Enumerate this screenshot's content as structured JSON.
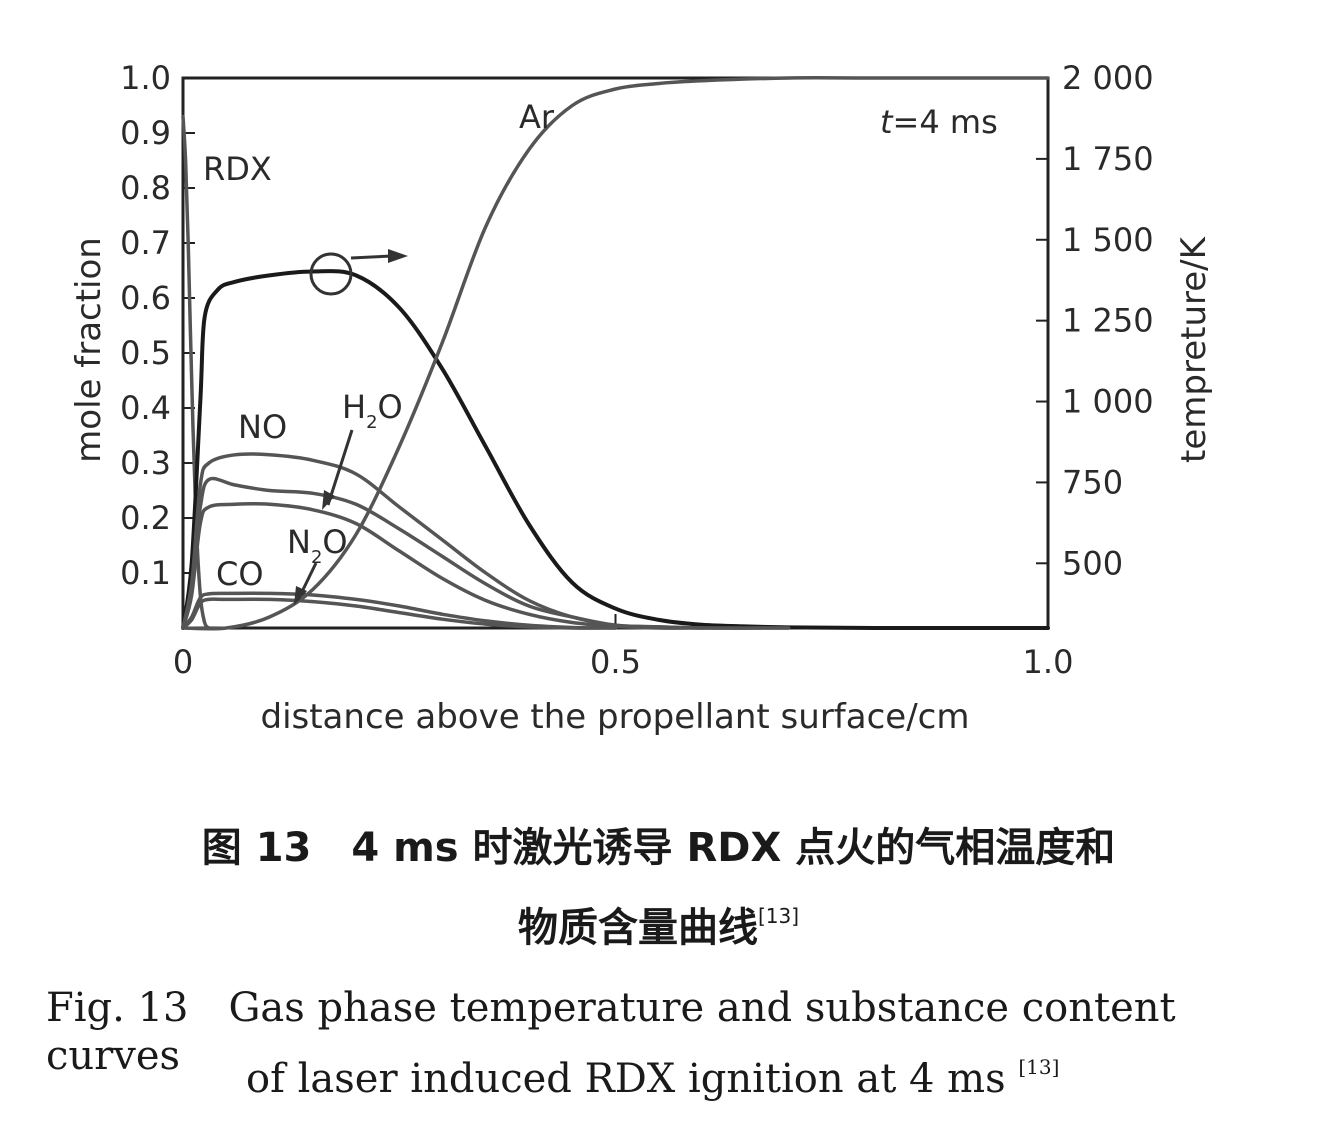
{
  "chart_data": {
    "type": "line",
    "xlabel": "distance above the propellant surface/cm",
    "ylabel_left": "mole fraction",
    "ylabel_right": "tempreture/K",
    "xlim": [
      0,
      1.0
    ],
    "ylim_left": [
      0,
      1.0
    ],
    "ylim_right": [
      300,
      2000
    ],
    "x_ticks": [
      "0",
      "0.5",
      "1.0"
    ],
    "y_ticks_left": [
      "0.1",
      "0.2",
      "0.3",
      "0.4",
      "0.5",
      "0.6",
      "0.7",
      "0.8",
      "0.9",
      "1.0"
    ],
    "y_ticks_right": [
      "500",
      "750",
      "1 000",
      "1 250",
      "1 500",
      "1 750",
      "2 000"
    ],
    "annotation": "t=4 ms",
    "series": [
      {
        "name": "RDX",
        "axis": "left",
        "color": "#555555",
        "x": [
          0,
          0.003,
          0.006,
          0.01,
          0.015,
          0.02,
          0.025,
          0.03
        ],
        "y": [
          0.93,
          0.85,
          0.7,
          0.45,
          0.2,
          0.06,
          0.01,
          0
        ]
      },
      {
        "name": "Temperature",
        "axis": "right",
        "color": "#1a1a1a",
        "x": [
          0,
          0.01,
          0.02,
          0.025,
          0.04,
          0.06,
          0.1,
          0.15,
          0.2,
          0.25,
          0.3,
          0.35,
          0.4,
          0.45,
          0.5,
          0.55,
          0.6,
          0.65,
          0.7,
          0.8,
          1.0
        ],
        "y": [
          300,
          500,
          1000,
          1260,
          1345,
          1370,
          1390,
          1402,
          1390,
          1290,
          1100,
          860,
          620,
          440,
          360,
          325,
          310,
          305,
          302,
          300,
          300
        ]
      },
      {
        "name": "Ar",
        "axis": "left",
        "color": "#555555",
        "x": [
          0,
          0.05,
          0.1,
          0.15,
          0.2,
          0.25,
          0.3,
          0.35,
          0.4,
          0.45,
          0.5,
          0.55,
          0.6,
          0.7,
          0.8,
          1.0
        ],
        "y": [
          0,
          0,
          0.02,
          0.07,
          0.17,
          0.33,
          0.52,
          0.73,
          0.87,
          0.95,
          0.98,
          0.99,
          0.995,
          1.0,
          1.0,
          1.0
        ]
      },
      {
        "name": "NO",
        "axis": "left",
        "color": "#555555",
        "x": [
          0,
          0.01,
          0.02,
          0.03,
          0.06,
          0.1,
          0.15,
          0.2,
          0.25,
          0.3,
          0.35,
          0.4,
          0.45,
          0.5,
          0.55,
          0.6,
          0.7
        ],
        "y": [
          0,
          0.08,
          0.26,
          0.3,
          0.315,
          0.315,
          0.305,
          0.28,
          0.22,
          0.16,
          0.1,
          0.05,
          0.02,
          0.005,
          0.002,
          0,
          0
        ]
      },
      {
        "name": "H2O",
        "axis": "left",
        "color": "#555555",
        "x": [
          0,
          0.01,
          0.02,
          0.03,
          0.06,
          0.1,
          0.15,
          0.2,
          0.25,
          0.3,
          0.35,
          0.4,
          0.45,
          0.5,
          0.55,
          0.6,
          0.7
        ],
        "y": [
          0,
          0.08,
          0.22,
          0.27,
          0.26,
          0.25,
          0.245,
          0.225,
          0.18,
          0.13,
          0.08,
          0.04,
          0.02,
          0.005,
          0.002,
          0,
          0
        ]
      },
      {
        "name": "unlabeled",
        "axis": "left",
        "color": "#555555",
        "x": [
          0,
          0.01,
          0.02,
          0.03,
          0.06,
          0.1,
          0.15,
          0.2,
          0.25,
          0.3,
          0.35,
          0.4,
          0.45,
          0.5,
          0.55,
          0.6
        ],
        "y": [
          0,
          0.06,
          0.19,
          0.22,
          0.225,
          0.225,
          0.215,
          0.19,
          0.14,
          0.09,
          0.05,
          0.025,
          0.01,
          0.003,
          0,
          0
        ]
      },
      {
        "name": "CO",
        "axis": "left",
        "color": "#555555",
        "x": [
          0,
          0.01,
          0.02,
          0.03,
          0.05,
          0.1,
          0.15,
          0.2,
          0.25,
          0.3,
          0.35,
          0.4,
          0.45,
          0.5
        ],
        "y": [
          0,
          0.02,
          0.055,
          0.062,
          0.063,
          0.063,
          0.06,
          0.052,
          0.04,
          0.025,
          0.013,
          0.005,
          0.001,
          0
        ]
      },
      {
        "name": "N2O",
        "axis": "left",
        "color": "#555555",
        "x": [
          0,
          0.01,
          0.02,
          0.03,
          0.05,
          0.1,
          0.15,
          0.2,
          0.25,
          0.3,
          0.35,
          0.4,
          0.45,
          0.5
        ],
        "y": [
          0,
          0.015,
          0.045,
          0.052,
          0.052,
          0.052,
          0.048,
          0.04,
          0.028,
          0.016,
          0.007,
          0.002,
          0,
          0
        ]
      }
    ],
    "labels": {
      "rdx": "RDX",
      "ar": "Ar",
      "no": "NO",
      "h2o_h": "H",
      "h2o_sub": "2",
      "h2o_o": "O",
      "co": "CO",
      "n2o_n": "N",
      "n2o_sub": "2",
      "n2o_o": "O",
      "t_italic": "t",
      "t_rest": "=4 ms"
    }
  },
  "caption": {
    "cn_line1": "图 13　4 ms 时激光诱导 RDX 点火的气相温度和",
    "cn_line2": "物质含量曲线",
    "cn_ref": "[13]",
    "en_line1": "Fig. 13　Gas phase temperature and substance content curves",
    "en_line2": "of laser induced RDX ignition at 4 ms",
    "en_ref": "[13]"
  }
}
